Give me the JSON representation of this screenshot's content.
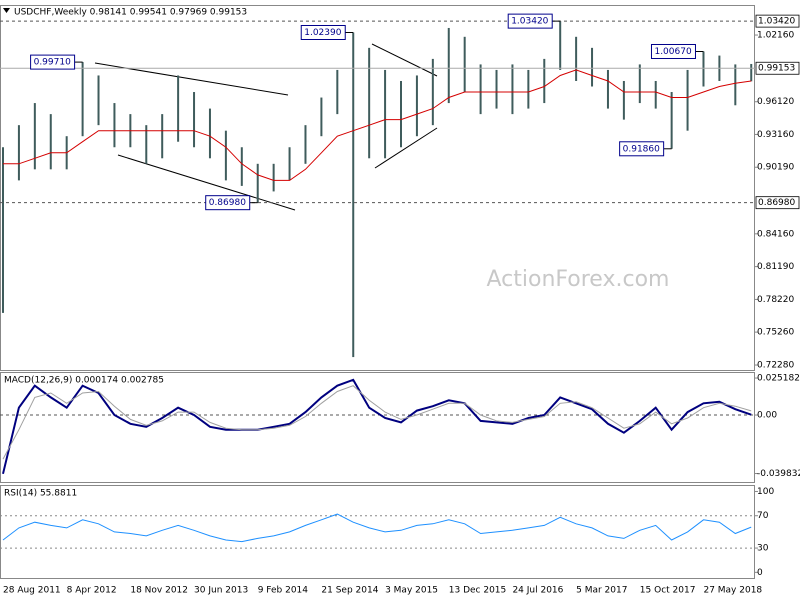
{
  "chart_data": [
    {
      "type": "hilo",
      "title": "USDCHF,Weekly  0.98141 0.99541 0.97969 0.99153",
      "watermark": "ActionForex.com",
      "color": "#3f5c5c",
      "categories": [
        "28 Aug 2011",
        null,
        null,
        null,
        "8 Apr 2012",
        null,
        null,
        null,
        "18 Nov 2012",
        null,
        null,
        null,
        "30 Jun 2013",
        null,
        null,
        null,
        "9 Feb 2014",
        null,
        null,
        null,
        "21 Sep 2014",
        null,
        null,
        null,
        "3 May 2015",
        null,
        null,
        null,
        "13 Dec 2015",
        null,
        null,
        null,
        "24 Jul 2016",
        null,
        null,
        null,
        "5 Mar 2017",
        null,
        null,
        null,
        "15 Oct 2017",
        null,
        null,
        null,
        "27 May 2018",
        null,
        null,
        null
      ],
      "high": [
        0.92,
        0.94,
        0.96,
        0.95,
        0.93,
        0.9971,
        0.985,
        0.96,
        0.95,
        0.94,
        0.95,
        0.985,
        0.97,
        0.955,
        0.935,
        0.92,
        0.905,
        0.905,
        0.92,
        0.94,
        0.965,
        0.99,
        1.0239,
        1.01,
        0.99,
        0.98,
        0.985,
        1.0,
        1.028,
        1.02,
        0.995,
        0.99,
        0.995,
        0.99,
        1.0,
        1.0342,
        1.02,
        1.01,
        0.99,
        0.98,
        0.995,
        0.98,
        0.97,
        0.99,
        1.0067,
        1.003,
        0.995,
        0.9954
      ],
      "low": [
        0.77,
        0.89,
        0.9,
        0.9,
        0.9,
        0.93,
        0.94,
        0.92,
        0.92,
        0.905,
        0.91,
        0.925,
        0.92,
        0.91,
        0.89,
        0.885,
        0.8698,
        0.88,
        0.89,
        0.905,
        0.93,
        0.95,
        0.73,
        0.91,
        0.91,
        0.92,
        0.93,
        0.94,
        0.96,
        0.97,
        0.95,
        0.955,
        0.95,
        0.955,
        0.96,
        0.99,
        0.98,
        0.975,
        0.955,
        0.945,
        0.96,
        0.955,
        0.9186,
        0.935,
        0.975,
        0.98,
        0.958,
        0.9797
      ],
      "ma": {
        "color": "#d40000",
        "values": [
          0.905,
          0.905,
          0.91,
          0.915,
          0.915,
          0.925,
          0.935,
          0.935,
          0.935,
          0.935,
          0.935,
          0.935,
          0.935,
          0.93,
          0.92,
          0.905,
          0.895,
          0.89,
          0.89,
          0.9,
          0.915,
          0.93,
          0.935,
          0.94,
          0.945,
          0.945,
          0.95,
          0.955,
          0.965,
          0.97,
          0.97,
          0.97,
          0.97,
          0.97,
          0.975,
          0.985,
          0.99,
          0.985,
          0.98,
          0.97,
          0.97,
          0.97,
          0.965,
          0.965,
          0.97,
          0.975,
          0.978,
          0.98
        ]
      },
      "ylim": [
        0.7183,
        1.0488
      ],
      "yticks": [
        {
          "value": 1.0216,
          "label": "1.02160"
        },
        {
          "value": 0.9612,
          "label": "0.96120"
        },
        {
          "value": 0.9316,
          "label": "0.93160"
        },
        {
          "value": 0.9019,
          "label": "0.90190"
        },
        {
          "value": 0.8416,
          "label": "0.84160"
        },
        {
          "value": 0.8119,
          "label": "0.81190"
        },
        {
          "value": 0.7822,
          "label": "0.78220"
        },
        {
          "value": 0.7526,
          "label": "0.75260"
        },
        {
          "value": 0.7228,
          "label": "0.72280"
        }
      ],
      "price_lines": [
        {
          "value": 1.0342,
          "label": "1.03420",
          "style": "dashed"
        },
        {
          "value": 0.99153,
          "label": "0.99153",
          "style": "solid"
        },
        {
          "value": 0.8698,
          "label": "0.86980",
          "style": "dashed"
        }
      ],
      "annotations": [
        {
          "value": 0.9971,
          "label": "0.99710"
        },
        {
          "value": 1.0239,
          "label": "1.02390"
        },
        {
          "value": 1.0342,
          "label": "1.03420"
        },
        {
          "value": 1.0067,
          "label": "1.00670"
        },
        {
          "value": 0.9186,
          "label": "0.91860"
        },
        {
          "value": 0.8698,
          "label": "0.86980"
        }
      ]
    },
    {
      "type": "macd",
      "title": "MACD(12,26,9) 0.000174 0.002785",
      "series": [
        {
          "color": "#00007f",
          "width": 2,
          "values": [
            -0.04,
            0.005,
            0.02,
            0.012,
            0.005,
            0.02,
            0.015,
            0.0,
            -0.006,
            -0.008,
            -0.002,
            0.005,
            0.0,
            -0.008,
            -0.01,
            -0.01,
            -0.01,
            -0.008,
            -0.006,
            0.002,
            0.012,
            0.02,
            0.024,
            0.005,
            -0.002,
            -0.005,
            0.003,
            0.006,
            0.01,
            0.008,
            -0.004,
            -0.005,
            -0.006,
            -0.002,
            0.0,
            0.012,
            0.008,
            0.004,
            -0.006,
            -0.012,
            -0.004,
            0.005,
            -0.01,
            0.002,
            0.008,
            0.009,
            0.004,
            0.0002
          ]
        },
        {
          "color": "#a0a0a0",
          "width": 1,
          "values": [
            -0.03,
            -0.01,
            0.012,
            0.015,
            0.008,
            0.015,
            0.016,
            0.006,
            -0.003,
            -0.007,
            -0.004,
            0.002,
            0.002,
            -0.005,
            -0.009,
            -0.01,
            -0.01,
            -0.009,
            -0.007,
            -0.001,
            0.008,
            0.016,
            0.02,
            0.01,
            0.002,
            -0.003,
            0.0,
            0.004,
            0.008,
            0.008,
            0.0,
            -0.004,
            -0.005,
            -0.003,
            -0.001,
            0.008,
            0.009,
            0.005,
            -0.002,
            -0.009,
            -0.006,
            0.002,
            -0.006,
            -0.002,
            0.005,
            0.008,
            0.006,
            0.0028
          ]
        }
      ],
      "ylim": [
        -0.0456,
        0.0293
      ],
      "yticks": [
        0.025182,
        {
          "value": 0,
          "label": "0.00"
        },
        -0.039832
      ],
      "zero_line": true
    },
    {
      "type": "line",
      "title": "RSI(14) 55.8811",
      "series": [
        {
          "color": "#1e90ff",
          "width": 1,
          "values": [
            40,
            55,
            62,
            58,
            55,
            65,
            60,
            50,
            48,
            45,
            52,
            58,
            52,
            45,
            40,
            38,
            42,
            45,
            50,
            58,
            65,
            72,
            62,
            55,
            50,
            52,
            58,
            60,
            65,
            60,
            48,
            50,
            52,
            55,
            58,
            68,
            60,
            55,
            45,
            42,
            52,
            58,
            40,
            50,
            65,
            62,
            48,
            55.8811
          ]
        }
      ],
      "ylim": [
        -7,
        108
      ],
      "yticks": [
        100,
        70,
        30,
        0
      ],
      "levels": [
        70,
        30
      ]
    }
  ]
}
